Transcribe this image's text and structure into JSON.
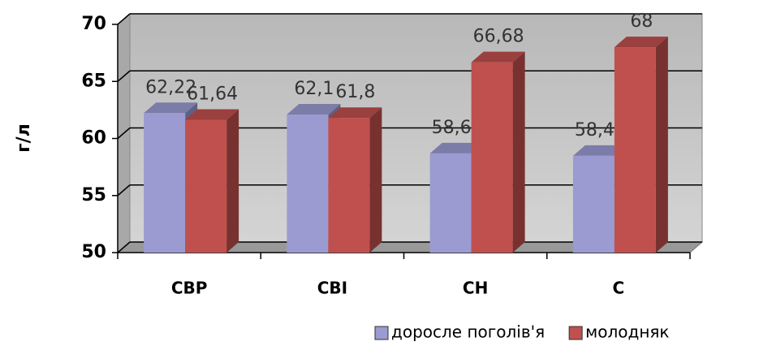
{
  "chart_data": {
    "type": "bar3d",
    "y_label": "г/л",
    "categories": [
      "СВР",
      "СВІ",
      "СН",
      "С"
    ],
    "series": [
      {
        "name": "доросле поголів'я",
        "color": "#9b9bd2",
        "values": [
          62.22,
          62.1,
          58.69,
          58.48
        ],
        "value_labels": [
          "62,22",
          "62,1",
          "58,69",
          "58,48"
        ]
      },
      {
        "name": "молодняк",
        "color": "#c0504d",
        "values": [
          61.64,
          61.8,
          66.68,
          68
        ],
        "value_labels": [
          "61,64",
          "61,8",
          "66,68",
          "68"
        ]
      }
    ],
    "ylim": [
      50,
      70
    ],
    "yticks": [
      50,
      55,
      60,
      65,
      70
    ],
    "grid": true,
    "legend": "bottom-right"
  }
}
